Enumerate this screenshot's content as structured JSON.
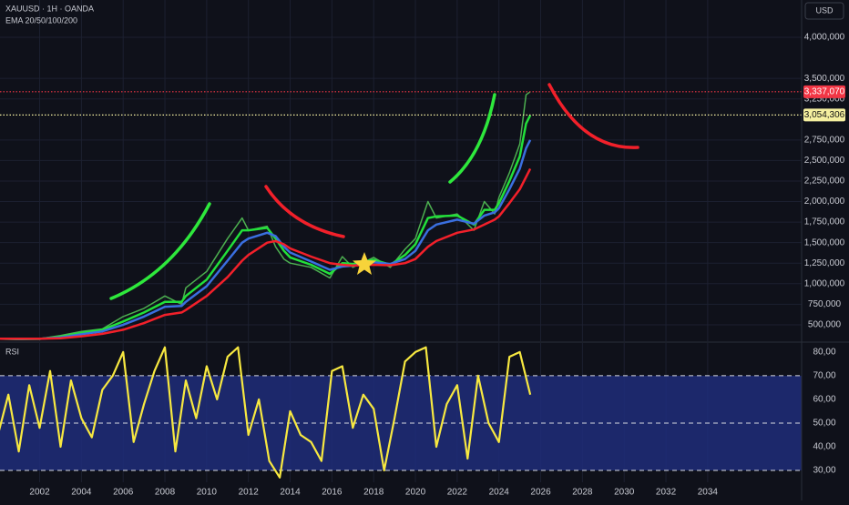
{
  "chart_data": [
    {
      "type": "line",
      "title": "XAUUSD · 1H · OANDA",
      "subtitle": "EMA 20/50/100/200",
      "currency": "USD",
      "x": [
        2000.1,
        2001,
        2002,
        2003,
        2004,
        2005,
        2006,
        2007,
        2008,
        2008.8,
        2009,
        2010,
        2011,
        2011.7,
        2012,
        2012.9,
        2013.3,
        2013.7,
        2014,
        2015,
        2015.9,
        2016.5,
        2017,
        2018,
        2018.8,
        2019.5,
        2020,
        2020.6,
        2021,
        2022,
        2022.8,
        2023.3,
        2023.8,
        2024,
        2024.5,
        2025,
        2025.3,
        2025.5
      ],
      "series": [
        {
          "color": "#4caf50",
          "values": [
            330000,
            320000,
            330000,
            370000,
            420000,
            450000,
            600000,
            700000,
            850000,
            750000,
            950000,
            1150000,
            1550000,
            1800000,
            1650000,
            1700000,
            1450000,
            1300000,
            1250000,
            1200000,
            1070000,
            1330000,
            1200000,
            1320000,
            1200000,
            1420000,
            1550000,
            2000000,
            1800000,
            1850000,
            1650000,
            2000000,
            1850000,
            2050000,
            2350000,
            2700000,
            3300000,
            3337070
          ]
        },
        {
          "color": "#22e03a",
          "values": [
            330000,
            325000,
            328000,
            355000,
            400000,
            440000,
            540000,
            650000,
            780000,
            780000,
            850000,
            1050000,
            1400000,
            1650000,
            1650000,
            1680000,
            1550000,
            1400000,
            1320000,
            1230000,
            1120000,
            1250000,
            1240000,
            1290000,
            1230000,
            1350000,
            1480000,
            1800000,
            1820000,
            1830000,
            1720000,
            1900000,
            1900000,
            1980000,
            2250000,
            2550000,
            2950000,
            3050000
          ]
        },
        {
          "color": "#3a6fe0",
          "values": [
            330000,
            328000,
            329000,
            345000,
            385000,
            420000,
            500000,
            600000,
            720000,
            730000,
            780000,
            970000,
            1280000,
            1500000,
            1550000,
            1620000,
            1580000,
            1450000,
            1380000,
            1270000,
            1170000,
            1210000,
            1220000,
            1260000,
            1240000,
            1300000,
            1400000,
            1650000,
            1720000,
            1780000,
            1730000,
            1830000,
            1870000,
            1920000,
            2150000,
            2400000,
            2650000,
            2750000
          ]
        },
        {
          "color": "#f2202a",
          "values": [
            330000,
            330000,
            330000,
            335000,
            360000,
            390000,
            440000,
            520000,
            620000,
            650000,
            680000,
            850000,
            1080000,
            1280000,
            1350000,
            1500000,
            1520000,
            1480000,
            1430000,
            1330000,
            1250000,
            1230000,
            1220000,
            1230000,
            1225000,
            1250000,
            1300000,
            1450000,
            1520000,
            1620000,
            1660000,
            1720000,
            1780000,
            1820000,
            1980000,
            2150000,
            2300000,
            2400000
          ]
        }
      ],
      "xlim": [
        2000.1,
        2038.5
      ],
      "xticks": [
        2002,
        2004,
        2006,
        2008,
        2010,
        2012,
        2014,
        2016,
        2018,
        2020,
        2022,
        2024,
        2026,
        2028,
        2030,
        2032,
        2034
      ],
      "ylim": [
        300000,
        4454000
      ],
      "yticks": [
        {
          "value": 500000,
          "label": "500,000"
        },
        {
          "value": 750000,
          "label": "750,000"
        },
        {
          "value": 1000000,
          "label": "1,000,000"
        },
        {
          "value": 1250000,
          "label": "1,250,000"
        },
        {
          "value": 1500000,
          "label": "1,500,000"
        },
        {
          "value": 1750000,
          "label": "1,750,000"
        },
        {
          "value": 2000000,
          "label": "2,000,000"
        },
        {
          "value": 2250000,
          "label": "2,250,000"
        },
        {
          "value": 2500000,
          "label": "2,500,000"
        },
        {
          "value": 2750000,
          "label": "2,750,000"
        },
        {
          "value": 3250000,
          "label": "3,250,000"
        },
        {
          "value": 3500000,
          "label": "3,500,000"
        },
        {
          "value": 4000000,
          "label": "4,000,000"
        }
      ],
      "annotations": [
        {
          "value": 3337070,
          "label": "3,337,070",
          "color": "#f23645"
        },
        {
          "value": 3054306,
          "label": "3,054,306",
          "color": "#f5f0a0"
        }
      ]
    },
    {
      "type": "line",
      "title": "RSI",
      "color": "#f7e840",
      "x": [
        2000,
        2000.5,
        2001,
        2001.5,
        2002,
        2002.5,
        2003,
        2003.5,
        2004,
        2004.5,
        2005,
        2005.5,
        2006,
        2006.5,
        2007,
        2007.5,
        2008,
        2008.5,
        2009,
        2009.5,
        2010,
        2010.5,
        2011,
        2011.5,
        2012,
        2012.5,
        2013,
        2013.5,
        2014,
        2014.5,
        2015,
        2015.5,
        2016,
        2016.5,
        2017,
        2017.5,
        2018,
        2018.5,
        2019,
        2019.5,
        2020,
        2020.5,
        2021,
        2021.5,
        2022,
        2022.5,
        2023,
        2023.5,
        2024,
        2024.5,
        2025,
        2025.5
      ],
      "values": [
        45,
        62,
        38,
        66,
        48,
        72,
        40,
        68,
        52,
        44,
        64,
        70,
        80,
        42,
        58,
        72,
        82,
        38,
        68,
        52,
        74,
        60,
        78,
        82,
        45,
        60,
        34,
        27,
        55,
        45,
        42,
        34,
        72,
        74,
        48,
        62,
        56,
        30,
        52,
        76,
        80,
        82,
        40,
        58,
        66,
        35,
        70,
        50,
        42,
        78,
        80,
        62
      ],
      "xlim": [
        2000.1,
        2038.5
      ],
      "ylim": [
        25,
        83.8
      ],
      "yticks": [
        {
          "value": 30,
          "label": "30,00"
        },
        {
          "value": 40,
          "label": "40,00"
        },
        {
          "value": 50,
          "label": "50,00"
        },
        {
          "value": 60,
          "label": "60,00"
        },
        {
          "value": 70,
          "label": "70,00"
        },
        {
          "value": 80,
          "label": "80,00"
        }
      ],
      "band": [
        30,
        70
      ],
      "band_color": "#1f2d7a",
      "levels": [
        30,
        50,
        70
      ]
    }
  ]
}
